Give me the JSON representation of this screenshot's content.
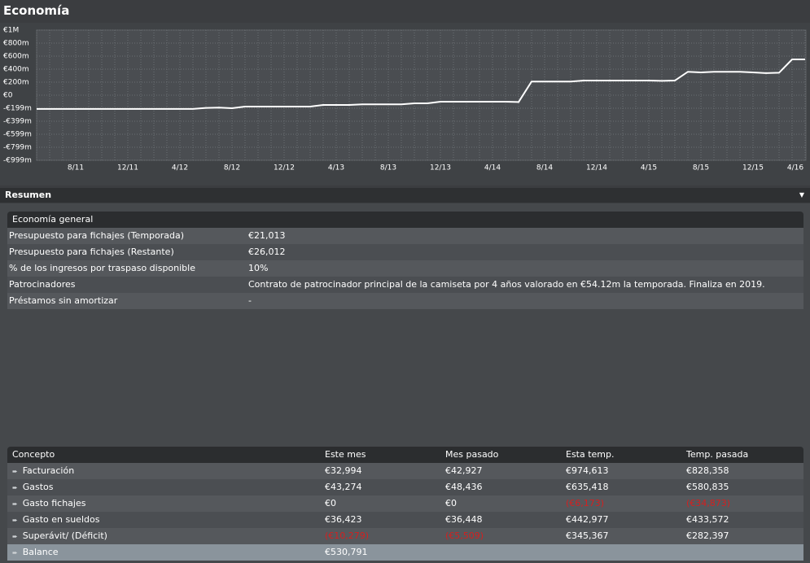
{
  "header": {
    "title": "Economía"
  },
  "chart_data": {
    "type": "line",
    "color": "#ffffff",
    "grid": true,
    "categories": [
      null,
      null,
      null,
      "8/11",
      null,
      null,
      null,
      "12/11",
      null,
      null,
      null,
      "4/12",
      null,
      null,
      null,
      "8/12",
      null,
      null,
      null,
      "12/12",
      null,
      null,
      null,
      "4/13",
      null,
      null,
      null,
      "8/13",
      null,
      null,
      null,
      "12/13",
      null,
      null,
      null,
      "4/14",
      null,
      null,
      null,
      "8/14",
      null,
      null,
      null,
      "12/14",
      null,
      null,
      null,
      "4/15",
      null,
      null,
      null,
      "8/15",
      null,
      null,
      null,
      "12/15",
      null,
      null,
      null,
      "4/16"
    ],
    "values": [
      -210,
      -210,
      -210,
      -210,
      -210,
      -210,
      -210,
      -210,
      -210,
      -210,
      -210,
      -210,
      -210,
      -195,
      -190,
      -200,
      -175,
      -175,
      -175,
      -175,
      -175,
      -175,
      -150,
      -150,
      -150,
      -140,
      -140,
      -140,
      -140,
      -125,
      -125,
      -100,
      -100,
      -100,
      -100,
      -100,
      -100,
      -105,
      210,
      210,
      210,
      210,
      225,
      225,
      225,
      225,
      225,
      225,
      220,
      225,
      360,
      350,
      360,
      360,
      360,
      350,
      340,
      345,
      550,
      550
    ],
    "ylim": [
      -999,
      1000
    ],
    "yticks": [
      {
        "value": 1000,
        "label": "€1M"
      },
      {
        "value": 800,
        "label": "€800m"
      },
      {
        "value": 600,
        "label": "€600m"
      },
      {
        "value": 400,
        "label": "€400m"
      },
      {
        "value": 200,
        "label": "€200m"
      },
      {
        "value": 0,
        "label": "€0"
      },
      {
        "value": -199,
        "label": "-€199m"
      },
      {
        "value": -399,
        "label": "-€399m"
      },
      {
        "value": -599,
        "label": "-€599m"
      },
      {
        "value": -799,
        "label": "-€799m"
      },
      {
        "value": -999,
        "label": "-€999m"
      }
    ]
  },
  "section": {
    "title": "Resumen"
  },
  "overview": {
    "title": "Economía general",
    "rows": [
      [
        "Presupuesto para fichajes (Temporada)",
        "€21,013"
      ],
      [
        "Presupuesto para fichajes (Restante)",
        "€26,012"
      ],
      [
        "% de los ingresos por traspaso disponible",
        "10%"
      ],
      [
        "Patrocinadores",
        "Contrato de patrocinador principal de la camiseta por 4 años valorado en €54.12m la temporada. Finaliza en 2019."
      ],
      [
        "Préstamos sin amortizar",
        "-"
      ]
    ]
  },
  "summary": {
    "columns": [
      "Concepto",
      "Este mes",
      "Mes pasado",
      "Esta temp.",
      "Temp. pasada"
    ],
    "rows": [
      [
        "Facturación",
        "€32,994",
        "€42,927",
        "€974,613",
        "€828,358"
      ],
      [
        "Gastos",
        "€43,274",
        "€48,436",
        "€635,418",
        "€580,835"
      ],
      [
        "Gasto fichajes",
        "€0",
        "€0",
        "(€6,173)",
        "(€34,873)"
      ],
      [
        "Gasto en sueldos",
        "€36,423",
        "€36,448",
        "€442,977",
        "€433,572"
      ],
      [
        "Superávit/ (Déficit)",
        "(€10,279)",
        "(€5,509)",
        "€345,367",
        "€282,397"
      ],
      [
        "Balance",
        "€530,791"
      ]
    ]
  }
}
